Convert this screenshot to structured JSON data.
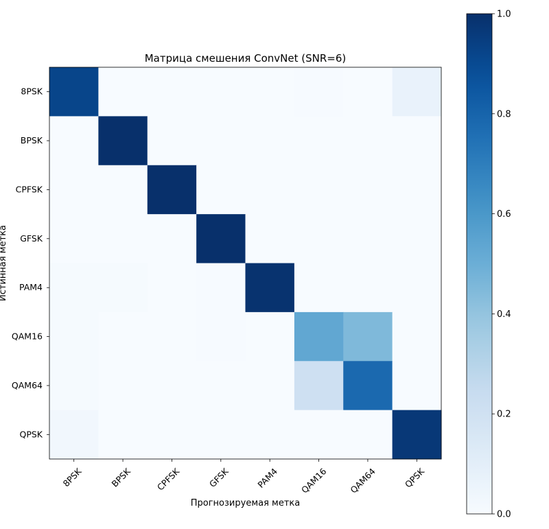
{
  "chart_data": {
    "type": "heatmap",
    "title": "Матрица смешения ConvNet (SNR=6)",
    "xlabel": "Прогнозируемая метка",
    "ylabel": "Истинная метка",
    "x_categories": [
      "8PSK",
      "BPSK",
      "CPFSK",
      "GFSK",
      "PAM4",
      "QAM16",
      "QAM64",
      "QPSK"
    ],
    "y_categories": [
      "8PSK",
      "BPSK",
      "CPFSK",
      "GFSK",
      "PAM4",
      "QAM16",
      "QAM64",
      "QPSK"
    ],
    "values": [
      [
        0.92,
        0.0,
        0.0,
        0.0,
        0.0,
        0.005,
        0.0,
        0.07
      ],
      [
        0.0,
        1.0,
        0.0,
        0.0,
        0.0,
        0.0,
        0.0,
        0.0
      ],
      [
        0.0,
        0.0,
        1.0,
        0.0,
        0.0,
        0.0,
        0.0,
        0.0
      ],
      [
        0.0,
        0.0,
        0.0,
        1.0,
        0.0,
        0.0,
        0.0,
        0.0
      ],
      [
        0.01,
        0.01,
        0.0,
        0.005,
        0.99,
        0.0,
        0.0,
        0.0
      ],
      [
        0.01,
        0.0,
        0.0,
        0.005,
        0.0,
        0.53,
        0.45,
        0.0
      ],
      [
        0.01,
        0.0,
        0.0,
        0.0,
        0.0,
        0.21,
        0.78,
        0.0
      ],
      [
        0.03,
        0.0,
        0.0,
        0.0,
        0.0,
        0.0,
        0.0,
        0.97
      ]
    ],
    "colormap": "Blues",
    "vmin": 0.0,
    "vmax": 1.0,
    "colorbar_ticks": [
      "0.0",
      "0.2",
      "0.4",
      "0.6",
      "0.8",
      "1.0"
    ]
  }
}
